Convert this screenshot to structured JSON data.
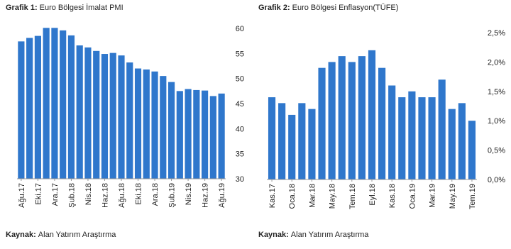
{
  "chart_data": [
    {
      "type": "bar",
      "title_label": "Grafik 1:",
      "title": "Euro Bölgesi İmalat PMI",
      "categories": [
        "Ağu.17",
        null,
        "Eki.17",
        null,
        "Ara.17",
        null,
        "Şub.18",
        null,
        "Nis.18",
        null,
        "Haz.18",
        null,
        "Ağu.18",
        null,
        "Eki.18",
        null,
        "Ara.18",
        null,
        "Şub.19",
        null,
        "Nis.19",
        null,
        "Haz.19",
        null,
        "Ağu.19"
      ],
      "values": [
        57.4,
        58.1,
        58.5,
        60.1,
        60.1,
        59.6,
        58.6,
        56.6,
        56.2,
        55.5,
        54.9,
        55.1,
        54.6,
        53.2,
        52.0,
        51.8,
        51.4,
        50.5,
        49.3,
        47.5,
        47.9,
        47.7,
        47.6,
        46.5,
        47.0
      ],
      "color": "#2f77cc",
      "ylim": [
        30,
        60
      ],
      "yticks": [
        30,
        35,
        40,
        45,
        50,
        55,
        60
      ],
      "source_label": "Kaynak:",
      "source": "Alan Yatırım Araştırma"
    },
    {
      "type": "bar",
      "title_label": "Grafik 2:",
      "title": "Euro Bölgesi Enflasyon(TÜFE)",
      "categories": [
        "Kas.17",
        null,
        "Oca.18",
        null,
        "Mar.18",
        null,
        "May.18",
        null,
        "Tem.18",
        null,
        "Eyl.18",
        null,
        "Kas.18",
        null,
        "Oca.19",
        null,
        "Mar.19",
        null,
        "May.19",
        null,
        "Tem.19"
      ],
      "values": [
        1.4,
        1.3,
        1.1,
        1.3,
        1.2,
        1.9,
        2.0,
        2.1,
        2.0,
        2.1,
        2.2,
        1.9,
        1.6,
        1.4,
        1.5,
        1.4,
        1.4,
        1.7,
        1.2,
        1.3,
        1.0
      ],
      "color": "#2f77cc",
      "ylim": [
        0,
        2.5
      ],
      "yticks": [
        {
          "value": 0,
          "label": "0,0%"
        },
        {
          "value": 0.5,
          "label": "0,5%"
        },
        {
          "value": 1.0,
          "label": "1,0%"
        },
        {
          "value": 1.5,
          "label": "1,5%"
        },
        {
          "value": 2.0,
          "label": "2,0%"
        },
        {
          "value": 2.5,
          "label": "2,5%"
        }
      ],
      "source_label": "Kaynak:",
      "source": "Alan Yatırım Araştırma"
    }
  ]
}
